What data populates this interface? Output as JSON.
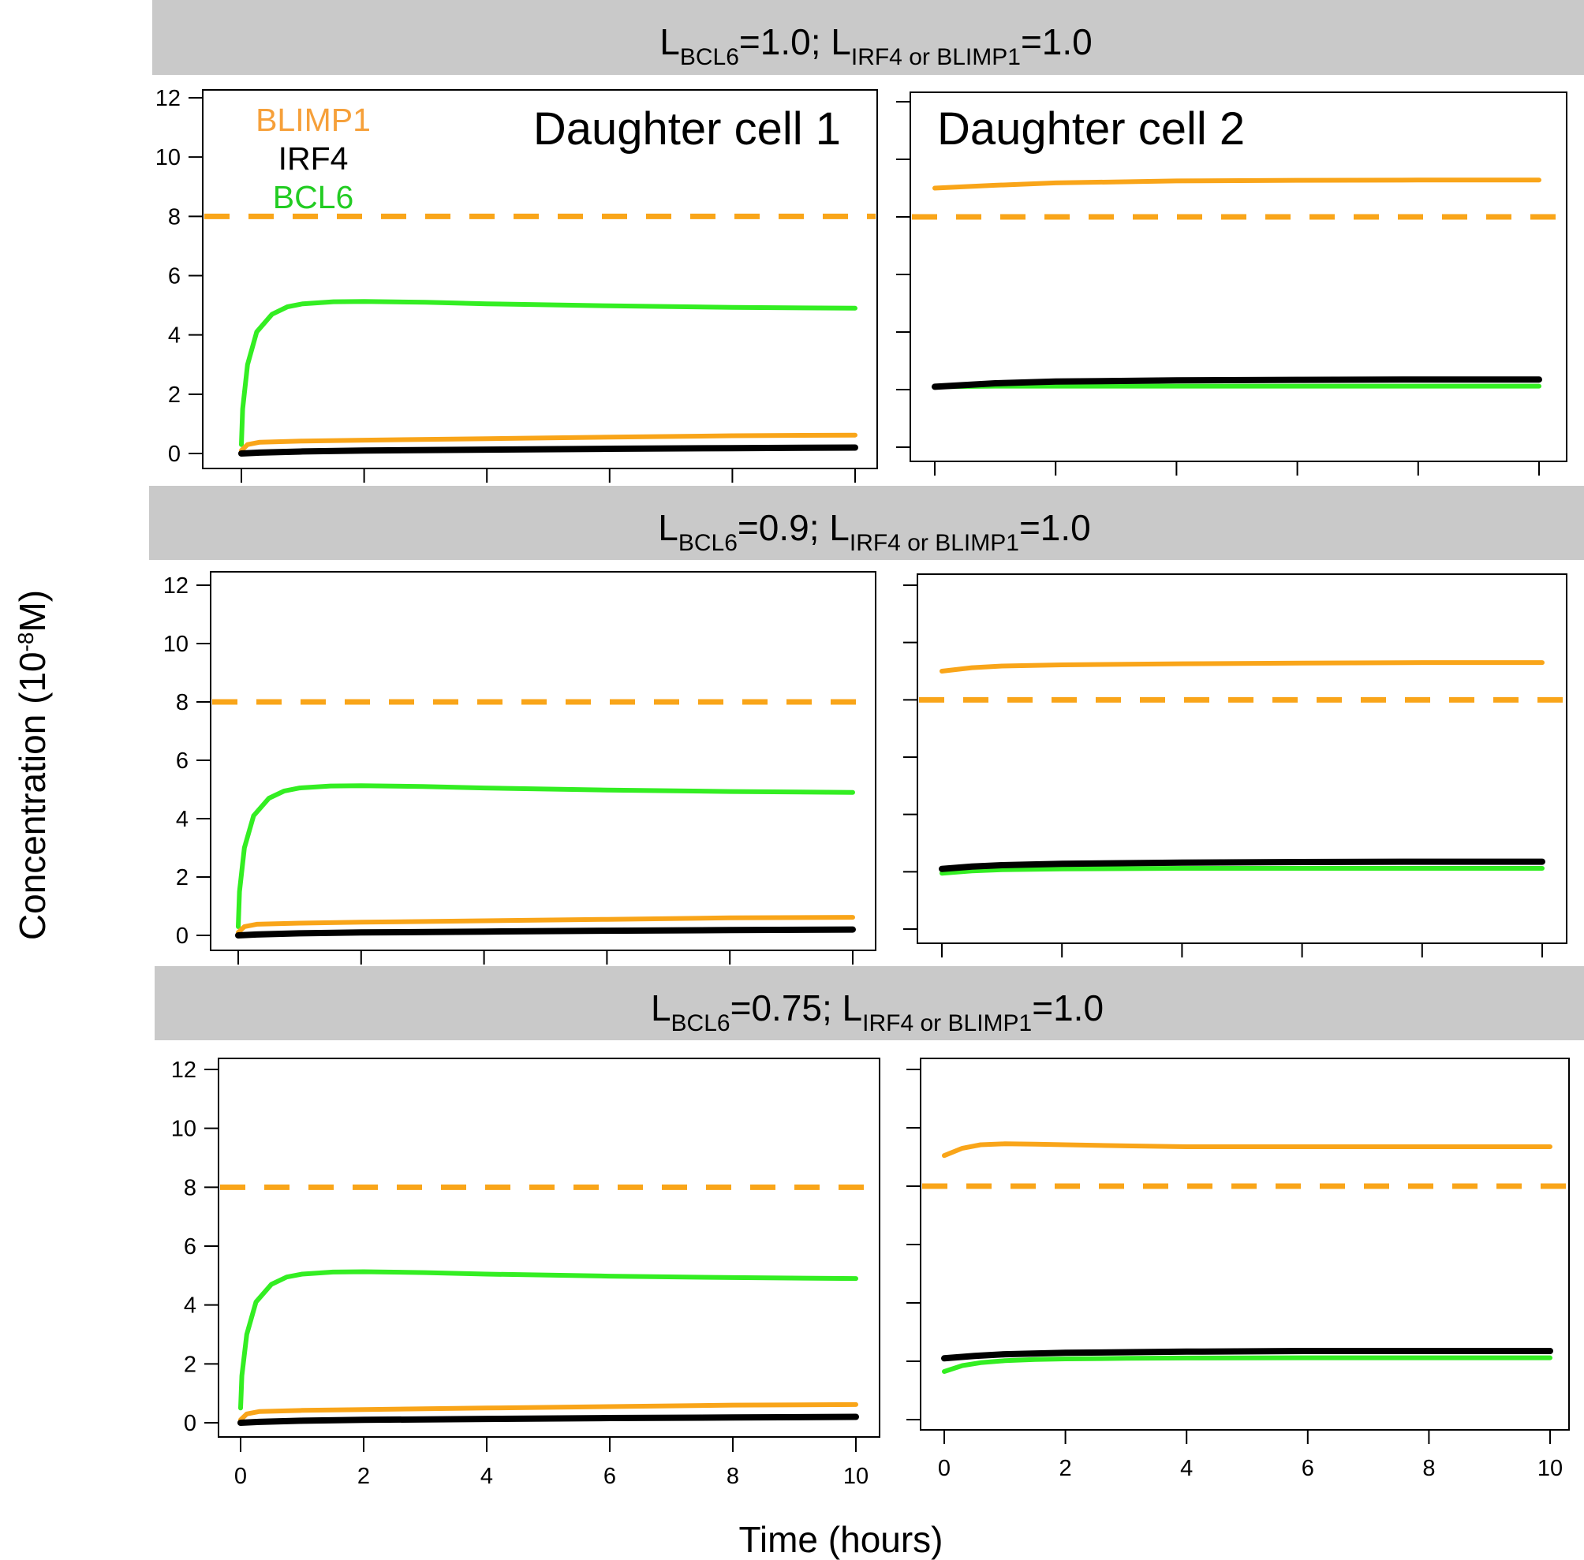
{
  "chart_data": {
    "type": "line",
    "xlabel": "Time (hours)",
    "ylabel": "Concentration (10",
    "ylabel_exponent": "-8",
    "ylabel_suffix": "M)",
    "xlim": [
      0,
      10
    ],
    "ylim": [
      0,
      12
    ],
    "x_ticks": [
      "0",
      "2",
      "4",
      "6",
      "8",
      "10"
    ],
    "y_ticks": [
      "0",
      "2",
      "4",
      "6",
      "8",
      "10",
      "12"
    ],
    "legend": [
      {
        "name": "BLIMP1",
        "color": "#f6a03a"
      },
      {
        "name": "IRF4",
        "color": "#000000"
      },
      {
        "name": "BCL6",
        "color": "#22cc22"
      }
    ],
    "cell_titles": [
      "Daughter cell 1",
      "Daughter cell 2"
    ],
    "colors": {
      "BLIMP1": "#f9a519",
      "IRF4": "#000000",
      "BCL6": "#33ee22",
      "threshold": "#f9a519"
    },
    "threshold": 8,
    "rows": [
      {
        "banner": {
          "L1": "L",
          "s1": "BCL6",
          "v1": "=1.0; ",
          "L2": "L",
          "s2": "IRF4 or BLIMP1",
          "v2": "=1.0"
        },
        "panels": [
          {
            "cell": 1,
            "series": [
              {
                "name": "BCL6",
                "x": [
                  0,
                  0.02,
                  0.1,
                  0.25,
                  0.5,
                  0.75,
                  1,
                  1.5,
                  2,
                  3,
                  4,
                  6,
                  8,
                  10
                ],
                "values": [
                  0.3,
                  1.5,
                  3.0,
                  4.1,
                  4.7,
                  4.95,
                  5.05,
                  5.12,
                  5.13,
                  5.1,
                  5.05,
                  4.98,
                  4.93,
                  4.9
                ]
              },
              {
                "name": "BLIMP1",
                "x": [
                  0,
                  0.1,
                  0.3,
                  1,
                  2,
                  4,
                  6,
                  8,
                  10
                ],
                "values": [
                  0.1,
                  0.3,
                  0.38,
                  0.42,
                  0.45,
                  0.5,
                  0.55,
                  0.6,
                  0.62
                ]
              },
              {
                "name": "IRF4",
                "x": [
                  0,
                  0.3,
                  1,
                  2,
                  4,
                  6,
                  8,
                  10
                ],
                "values": [
                  0,
                  0.03,
                  0.07,
                  0.1,
                  0.13,
                  0.16,
                  0.18,
                  0.2
                ]
              }
            ]
          },
          {
            "cell": 2,
            "series": [
              {
                "name": "BLIMP1",
                "x": [
                  0,
                  1,
                  2,
                  4,
                  6,
                  8,
                  10
                ],
                "values": [
                  9.0,
                  9.1,
                  9.18,
                  9.25,
                  9.27,
                  9.28,
                  9.28
                ]
              },
              {
                "name": "BCL6",
                "x": [
                  0,
                  1,
                  2,
                  4,
                  6,
                  8,
                  10
                ],
                "values": [
                  2.1,
                  2.12,
                  2.12,
                  2.12,
                  2.12,
                  2.12,
                  2.12
                ]
              },
              {
                "name": "IRF4",
                "x": [
                  0,
                  1,
                  2,
                  4,
                  6,
                  8,
                  10
                ],
                "values": [
                  2.1,
                  2.22,
                  2.28,
                  2.32,
                  2.34,
                  2.35,
                  2.35
                ]
              }
            ]
          }
        ]
      },
      {
        "banner": {
          "L1": "L",
          "s1": "BCL6",
          "v1": "=0.9; ",
          "L2": "L",
          "s2": "IRF4 or BLIMP1",
          "v2": "=1.0"
        },
        "panels": [
          {
            "cell": 1,
            "series": [
              {
                "name": "BCL6",
                "x": [
                  0,
                  0.02,
                  0.1,
                  0.25,
                  0.5,
                  0.75,
                  1,
                  1.5,
                  2,
                  3,
                  4,
                  6,
                  8,
                  10
                ],
                "values": [
                  0.3,
                  1.5,
                  3.0,
                  4.1,
                  4.7,
                  4.95,
                  5.05,
                  5.12,
                  5.13,
                  5.1,
                  5.05,
                  4.98,
                  4.93,
                  4.9
                ]
              },
              {
                "name": "BLIMP1",
                "x": [
                  0,
                  0.1,
                  0.3,
                  1,
                  2,
                  4,
                  6,
                  8,
                  10
                ],
                "values": [
                  0.1,
                  0.3,
                  0.38,
                  0.42,
                  0.45,
                  0.5,
                  0.55,
                  0.6,
                  0.62
                ]
              },
              {
                "name": "IRF4",
                "x": [
                  0,
                  0.3,
                  1,
                  2,
                  4,
                  6,
                  8,
                  10
                ],
                "values": [
                  0,
                  0.03,
                  0.07,
                  0.1,
                  0.13,
                  0.16,
                  0.18,
                  0.2
                ]
              }
            ]
          },
          {
            "cell": 2,
            "series": [
              {
                "name": "BLIMP1",
                "x": [
                  0,
                  0.5,
                  1,
                  2,
                  4,
                  6,
                  8,
                  10
                ],
                "values": [
                  9.0,
                  9.12,
                  9.18,
                  9.22,
                  9.26,
                  9.28,
                  9.3,
                  9.3
                ]
              },
              {
                "name": "BCL6",
                "x": [
                  0,
                  0.5,
                  1,
                  2,
                  4,
                  6,
                  8,
                  10
                ],
                "values": [
                  1.95,
                  2.03,
                  2.07,
                  2.1,
                  2.12,
                  2.12,
                  2.12,
                  2.12
                ]
              },
              {
                "name": "IRF4",
                "x": [
                  0,
                  0.5,
                  1,
                  2,
                  4,
                  6,
                  8,
                  10
                ],
                "values": [
                  2.1,
                  2.18,
                  2.23,
                  2.28,
                  2.32,
                  2.34,
                  2.35,
                  2.35
                ]
              }
            ]
          }
        ]
      },
      {
        "banner": {
          "L1": "L",
          "s1": "BCL6",
          "v1": "=0.75; ",
          "L2": "L",
          "s2": "IRF4 or BLIMP1",
          "v2": "=1.0"
        },
        "panels": [
          {
            "cell": 1,
            "series": [
              {
                "name": "BCL6",
                "x": [
                  0,
                  0.02,
                  0.1,
                  0.25,
                  0.5,
                  0.75,
                  1,
                  1.5,
                  2,
                  3,
                  4,
                  6,
                  8,
                  10
                ],
                "values": [
                  0.5,
                  1.6,
                  3.0,
                  4.1,
                  4.7,
                  4.95,
                  5.05,
                  5.12,
                  5.13,
                  5.1,
                  5.05,
                  4.98,
                  4.93,
                  4.9
                ]
              },
              {
                "name": "BLIMP1",
                "x": [
                  0,
                  0.1,
                  0.3,
                  1,
                  2,
                  4,
                  6,
                  8,
                  10
                ],
                "values": [
                  0.1,
                  0.3,
                  0.38,
                  0.42,
                  0.45,
                  0.5,
                  0.55,
                  0.6,
                  0.62
                ]
              },
              {
                "name": "IRF4",
                "x": [
                  0,
                  0.3,
                  1,
                  2,
                  4,
                  6,
                  8,
                  10
                ],
                "values": [
                  0,
                  0.03,
                  0.07,
                  0.1,
                  0.13,
                  0.16,
                  0.18,
                  0.2
                ]
              }
            ]
          },
          {
            "cell": 2,
            "series": [
              {
                "name": "BLIMP1",
                "x": [
                  0,
                  0.3,
                  0.6,
                  1,
                  1.5,
                  2,
                  3,
                  4,
                  6,
                  8,
                  10
                ],
                "values": [
                  9.05,
                  9.3,
                  9.42,
                  9.45,
                  9.44,
                  9.42,
                  9.38,
                  9.35,
                  9.35,
                  9.35,
                  9.35
                ]
              },
              {
                "name": "BCL6",
                "x": [
                  0,
                  0.3,
                  0.6,
                  1,
                  1.5,
                  2,
                  3,
                  4,
                  6,
                  8,
                  10
                ],
                "values": [
                  1.65,
                  1.85,
                  1.95,
                  2.02,
                  2.06,
                  2.08,
                  2.1,
                  2.11,
                  2.12,
                  2.12,
                  2.12
                ]
              },
              {
                "name": "IRF4",
                "x": [
                  0,
                  0.5,
                  1,
                  2,
                  4,
                  6,
                  8,
                  10
                ],
                "values": [
                  2.1,
                  2.18,
                  2.24,
                  2.29,
                  2.33,
                  2.35,
                  2.35,
                  2.35
                ]
              }
            ]
          }
        ]
      }
    ]
  }
}
